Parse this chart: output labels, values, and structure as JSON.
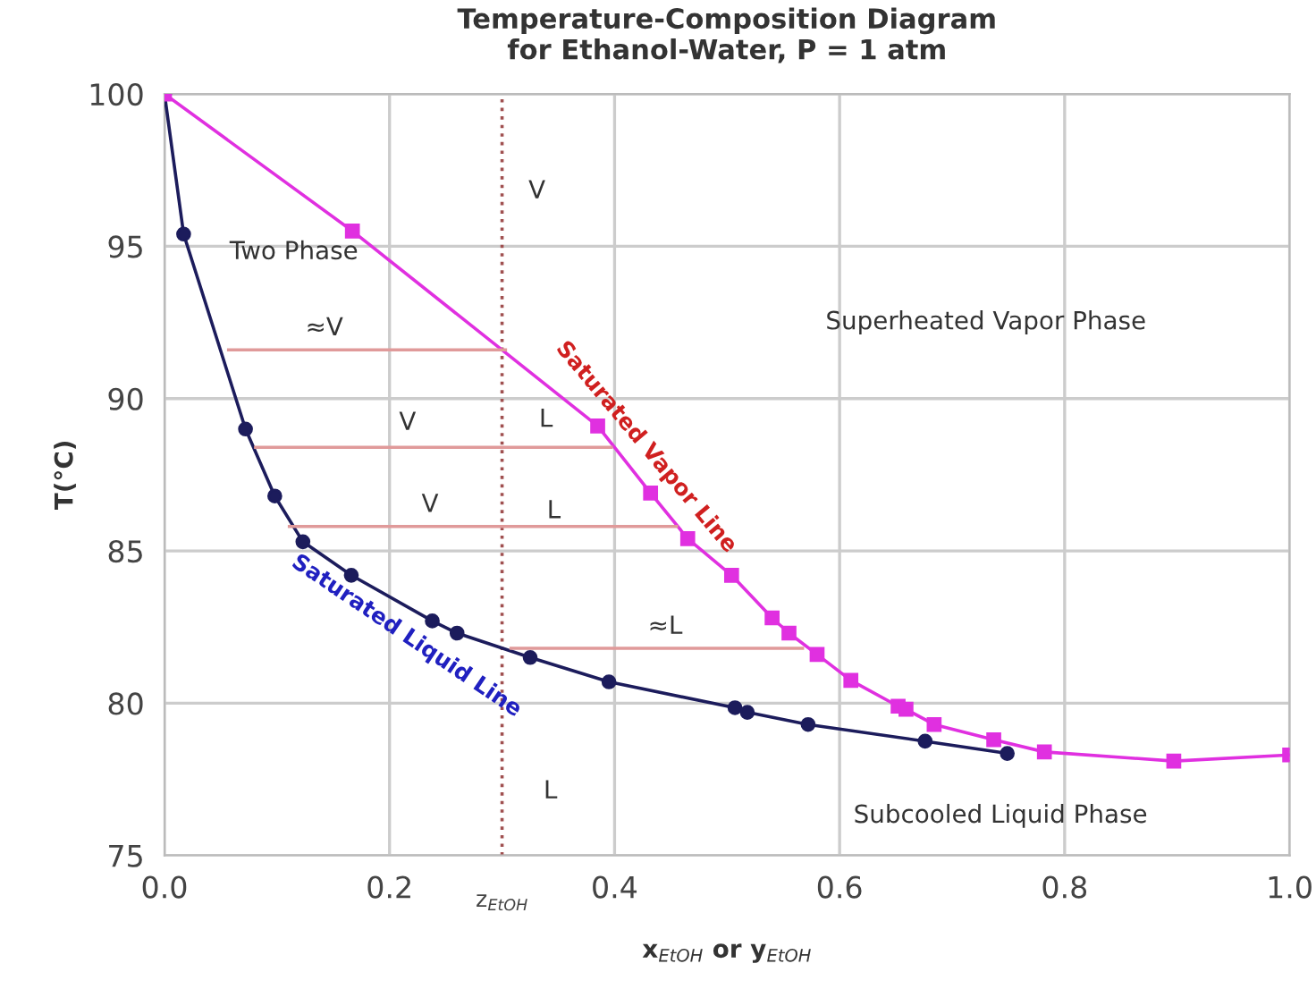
{
  "chart_data": {
    "type": "line",
    "title": "Temperature-Composition Diagram\nfor Ethanol-Water, P = 1 atm",
    "xlabel": "x$_{EtOH}$ or y$_{EtOH}$",
    "ylabel": "T(°C)",
    "xlim": [
      0,
      1
    ],
    "ylim": [
      75,
      100
    ],
    "xticks": [
      {
        "value": 0,
        "label": "0.0"
      },
      {
        "value": 0.2,
        "label": "0.2"
      },
      {
        "value": 0.4,
        "label": "0.4"
      },
      {
        "value": 0.6,
        "label": "0.6"
      },
      {
        "value": 0.8,
        "label": "0.8"
      },
      {
        "value": 1,
        "label": "1.0"
      }
    ],
    "yticks": [
      75,
      80,
      85,
      90,
      95,
      100
    ],
    "grid": true,
    "legend": false,
    "series": [
      {
        "color": "#1c1c5c",
        "marker": "circle",
        "x": [
          0,
          0.017,
          0.072,
          0.098,
          0.123,
          0.166,
          0.238,
          0.26,
          0.325,
          0.395,
          0.507,
          0.518,
          0.572,
          0.676,
          0.749
        ],
        "values": [
          100,
          95.4,
          89.0,
          86.8,
          85.3,
          84.2,
          82.7,
          82.3,
          81.5,
          80.7,
          79.85,
          79.7,
          79.3,
          78.75,
          78.35
        ]
      },
      {
        "color": "#e030e0",
        "marker": "square",
        "x": [
          0,
          0.167,
          0.385,
          0.432,
          0.465,
          0.504,
          0.54,
          0.555,
          0.58,
          0.61,
          0.652,
          0.659,
          0.684,
          0.737,
          0.782,
          0.897,
          1.0
        ],
        "values": [
          100,
          95.5,
          89.1,
          86.9,
          85.4,
          84.2,
          82.8,
          82.3,
          81.6,
          80.75,
          79.9,
          79.8,
          79.3,
          78.8,
          78.4,
          78.1,
          78.3
        ]
      },
      {
        "color": "#e09a9a",
        "marker": "none",
        "x": [
          0.057,
          0.303
        ],
        "values": [
          91.6,
          91.6
        ]
      },
      {
        "color": "#e09a9a",
        "marker": "none",
        "x": [
          0.081,
          0.397
        ],
        "values": [
          88.4,
          88.4
        ]
      },
      {
        "color": "#e09a9a",
        "marker": "none",
        "x": [
          0.111,
          0.455
        ],
        "values": [
          85.8,
          85.8
        ]
      },
      {
        "color": "#e09a9a",
        "marker": "none",
        "x": [
          0.308,
          0.567
        ],
        "values": [
          81.8,
          81.8
        ]
      }
    ],
    "ref_lines": [
      {
        "axis": "x",
        "value": 0.3,
        "label": "z$_{EtOH}$",
        "color": "#a05050",
        "line_style": "dotted"
      }
    ],
    "annotations": [
      "V",
      "Two Phase",
      "≈V",
      "V",
      "L",
      "V",
      "L",
      "≈L",
      "L",
      "Superheated Vapor Phase",
      "Subcooled Liquid Phase",
      "Saturated Vapor Line",
      "Saturated Liquid Line"
    ]
  }
}
